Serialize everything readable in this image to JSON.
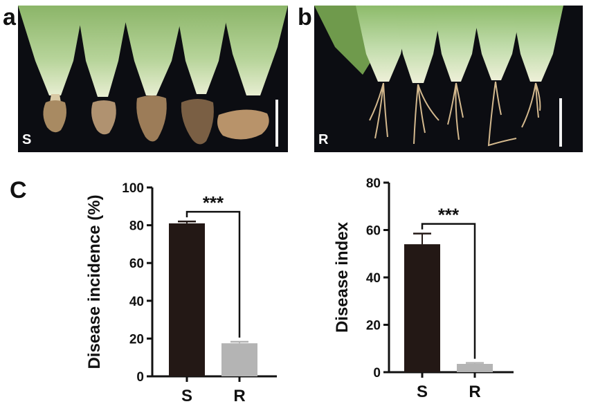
{
  "figure": {
    "panel_a": {
      "letter": "a",
      "tag": "S"
    },
    "panel_b": {
      "letter": "b",
      "tag": "R"
    },
    "panel_c": {
      "letter": "C"
    }
  },
  "colors": {
    "susceptible_bar": "#231815",
    "resistant_bar": "#b4b4b4",
    "photo_background": "#0c0d12",
    "leaf_green": "#7fa85a",
    "root_tan": "#c8a878"
  },
  "chart_data": [
    {
      "type": "bar",
      "categories": [
        "S",
        "R"
      ],
      "values": [
        81,
        17.5
      ],
      "errors": [
        1.0,
        0.8
      ],
      "ylabel": "Disease incidence (%)",
      "xlabel": "",
      "ylim": [
        0,
        100
      ],
      "yticks": [
        0,
        20,
        40,
        60,
        80,
        100
      ],
      "significance": "***",
      "colors": [
        "#231815",
        "#b4b4b4"
      ]
    },
    {
      "type": "bar",
      "categories": [
        "S",
        "R"
      ],
      "values": [
        54,
        3.5
      ],
      "errors": [
        4.5,
        0.4
      ],
      "ylabel": "Disease index",
      "xlabel": "",
      "ylim": [
        0,
        80
      ],
      "yticks": [
        0,
        20,
        40,
        60,
        80
      ],
      "significance": "***",
      "colors": [
        "#231815",
        "#b4b4b4"
      ]
    }
  ]
}
